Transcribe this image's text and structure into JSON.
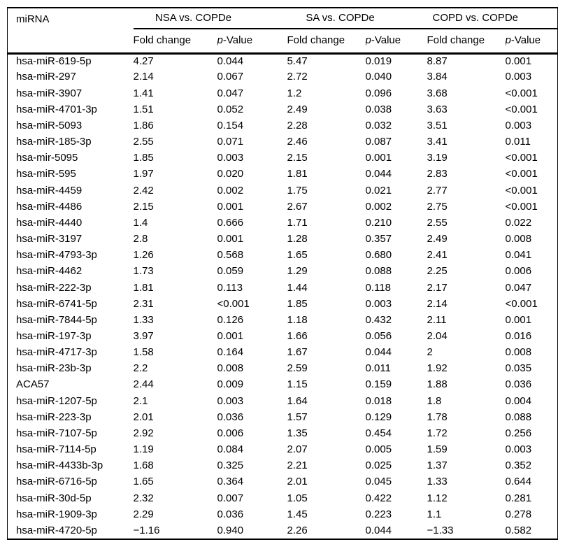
{
  "table": {
    "title_column": "miRNA",
    "groups": [
      {
        "label": "NSA vs. COPDe"
      },
      {
        "label": "SA vs. COPDe"
      },
      {
        "label": "COPD vs. COPDe"
      }
    ],
    "subheaders": {
      "fold_change": "Fold change",
      "p_italic": "p",
      "p_suffix": "-Value"
    },
    "columns": [
      "miRNA",
      "Fold change",
      "p-Value",
      "Fold change",
      "p-Value",
      "Fold change",
      "p-Value"
    ],
    "rows": [
      [
        "hsa-miR-619-5p",
        "4.27",
        "0.044",
        "5.47",
        "0.019",
        "8.87",
        "0.001"
      ],
      [
        "hsa-miR-297",
        "2.14",
        "0.067",
        "2.72",
        "0.040",
        "3.84",
        "0.003"
      ],
      [
        "hsa-miR-3907",
        "1.41",
        "0.047",
        "1.2",
        "0.096",
        "3.68",
        "<0.001"
      ],
      [
        "hsa-miR-4701-3p",
        "1.51",
        "0.052",
        "2.49",
        "0.038",
        "3.63",
        "<0.001"
      ],
      [
        "hsa-miR-5093",
        "1.86",
        "0.154",
        "2.28",
        "0.032",
        "3.51",
        "0.003"
      ],
      [
        "hsa-miR-185-3p",
        "2.55",
        "0.071",
        "2.46",
        "0.087",
        "3.41",
        "0.011"
      ],
      [
        "hsa-mir-5095",
        "1.85",
        "0.003",
        "2.15",
        "0.001",
        "3.19",
        "<0.001"
      ],
      [
        "hsa-miR-595",
        "1.97",
        "0.020",
        "1.81",
        "0.044",
        "2.83",
        "<0.001"
      ],
      [
        "hsa-miR-4459",
        "2.42",
        "0.002",
        "1.75",
        "0.021",
        "2.77",
        "<0.001"
      ],
      [
        "hsa-miR-4486",
        "2.15",
        "0.001",
        "2.67",
        "0.002",
        "2.75",
        "<0.001"
      ],
      [
        "hsa-miR-4440",
        "1.4",
        "0.666",
        "1.71",
        "0.210",
        "2.55",
        "0.022"
      ],
      [
        "hsa-miR-3197",
        "2.8",
        "0.001",
        "1.28",
        "0.357",
        "2.49",
        "0.008"
      ],
      [
        "hsa-miR-4793-3p",
        "1.26",
        "0.568",
        "1.65",
        "0.680",
        "2.41",
        "0.041"
      ],
      [
        "hsa-miR-4462",
        "1.73",
        "0.059",
        "1.29",
        "0.088",
        "2.25",
        "0.006"
      ],
      [
        "hsa-miR-222-3p",
        "1.81",
        "0.113",
        "1.44",
        "0.118",
        "2.17",
        "0.047"
      ],
      [
        "hsa-miR-6741-5p",
        "2.31",
        "<0.001",
        "1.85",
        "0.003",
        "2.14",
        "<0.001"
      ],
      [
        "hsa-miR-7844-5p",
        "1.33",
        "0.126",
        "1.18",
        "0.432",
        "2.11",
        "0.001"
      ],
      [
        "hsa-miR-197-3p",
        "3.97",
        "0.001",
        "1.66",
        "0.056",
        "2.04",
        "0.016"
      ],
      [
        "hsa-miR-4717-3p",
        "1.58",
        "0.164",
        "1.67",
        "0.044",
        "2",
        "0.008"
      ],
      [
        "hsa-miR-23b-3p",
        "2.2",
        "0.008",
        "2.59",
        "0.011",
        "1.92",
        "0.035"
      ],
      [
        "ACA57",
        "2.44",
        "0.009",
        "1.15",
        "0.159",
        "1.88",
        "0.036"
      ],
      [
        "hsa-miR-1207-5p",
        "2.1",
        "0.003",
        "1.64",
        "0.018",
        "1.8",
        "0.004"
      ],
      [
        "hsa-miR-223-3p",
        "2.01",
        "0.036",
        "1.57",
        "0.129",
        "1.78",
        "0.088"
      ],
      [
        "hsa-miR-7107-5p",
        "2.92",
        "0.006",
        "1.35",
        "0.454",
        "1.72",
        "0.256"
      ],
      [
        "hsa-miR-7114-5p",
        "1.19",
        "0.084",
        "2.07",
        "0.005",
        "1.59",
        "0.003"
      ],
      [
        "hsa-miR-4433b-3p",
        "1.68",
        "0.325",
        "2.21",
        "0.025",
        "1.37",
        "0.352"
      ],
      [
        "hsa-miR-6716-5p",
        "1.65",
        "0.364",
        "2.01",
        "0.045",
        "1.33",
        "0.644"
      ],
      [
        "hsa-miR-30d-5p",
        "2.32",
        "0.007",
        "1.05",
        "0.422",
        "1.12",
        "0.281"
      ],
      [
        "hsa-miR-1909-3p",
        "2.29",
        "0.036",
        "1.45",
        "0.223",
        "1.1",
        "0.278"
      ],
      [
        "hsa-miR-4720-5p",
        "−1.16",
        "0.940",
        "2.26",
        "0.044",
        "−1.33",
        "0.582"
      ]
    ]
  }
}
